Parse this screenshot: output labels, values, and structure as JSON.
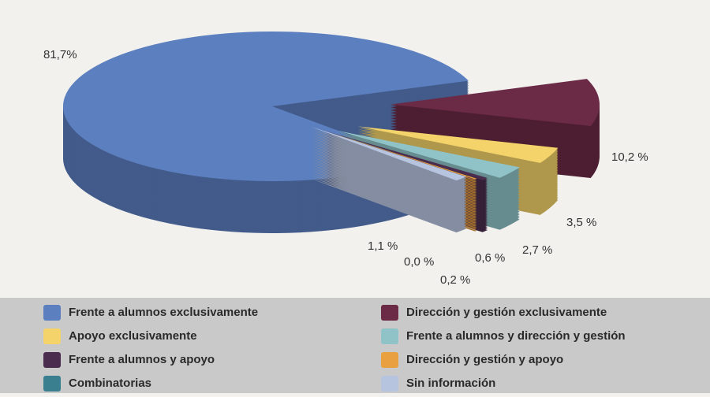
{
  "chart_data": {
    "type": "pie",
    "categories": [
      "Frente a alumnos exclusivamente",
      "Dirección y gestión exclusivamente",
      "Apoyo exclusivamente",
      "Frente a alumnos y dirección y gestión",
      "Frente a alumnos y apoyo",
      "Dirección y gestión y apoyo",
      "Combinatorias",
      "Sin información"
    ],
    "values": [
      81.7,
      10.2,
      3.5,
      2.7,
      0.6,
      0.2,
      0.0,
      1.1
    ],
    "value_labels": [
      "81,7%",
      "10,2 %",
      "3,5 %",
      "2,7 %",
      "0,6 %",
      "0,2 %",
      "0,0 %",
      "1,1 %"
    ],
    "colors": [
      "#5b7fbf",
      "#6b2a45",
      "#f3d36a",
      "#8fc3c8",
      "#4a2d4e",
      "#e8a040",
      "#3a7f90",
      "#b7c4e0"
    ],
    "legend": "bottom"
  }
}
